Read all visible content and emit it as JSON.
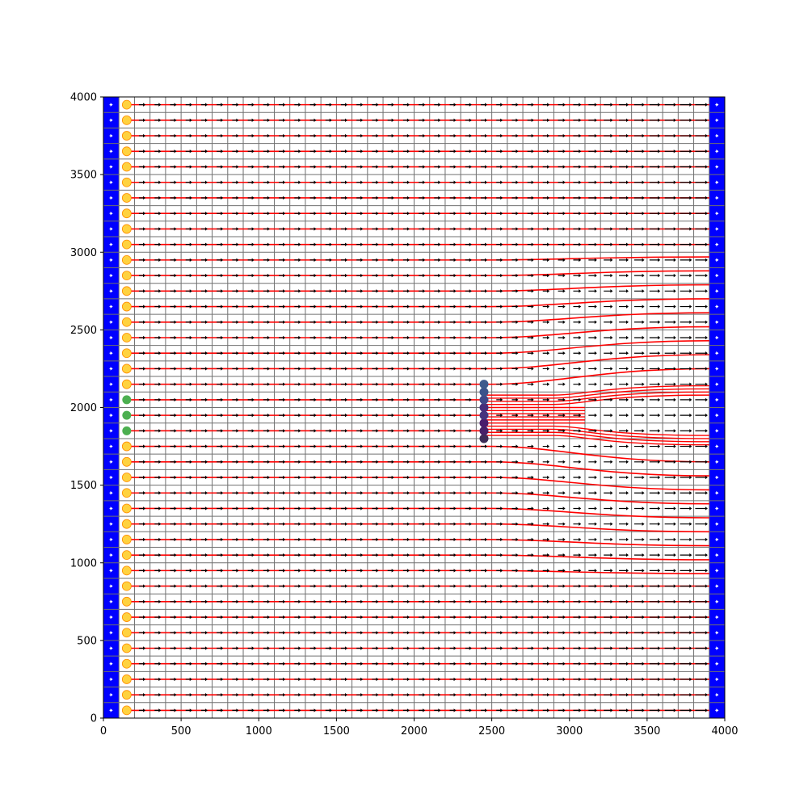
{
  "chart_data": {
    "type": "scatter",
    "title": "",
    "xlabel": "",
    "ylabel": "",
    "xlim": [
      0,
      4000
    ],
    "ylim": [
      0,
      4000
    ],
    "x_ticks": [
      0,
      500,
      1000,
      1500,
      2000,
      2500,
      3000,
      3500,
      4000
    ],
    "y_ticks": [
      0,
      500,
      1000,
      1500,
      2000,
      2500,
      3000,
      3500,
      4000
    ],
    "grid": {
      "cell_size": 100,
      "x_range": [
        0,
        4000
      ],
      "y_range": [
        0,
        4000
      ],
      "line_color": "#707070",
      "boundary_cell_color": "#0000ff",
      "boundary_columns_x": [
        0,
        3900
      ]
    },
    "velocity_field": {
      "arrow_color": "#000000",
      "description_vector_direction": "+x"
    },
    "wells": {
      "injectors_x": 150,
      "injector_y": [
        50,
        150,
        250,
        350,
        450,
        550,
        650,
        750,
        850,
        950,
        1050,
        1150,
        1250,
        1350,
        1450,
        1550,
        1650,
        1750,
        2150,
        2250,
        2350,
        2450,
        2550,
        2650,
        2750,
        2850,
        2950,
        3050,
        3150,
        3250,
        3350,
        3450,
        3550,
        3650,
        3750,
        3850,
        3950
      ],
      "injector_color": "#ffd23f",
      "special_injectors_y": [
        1850,
        1950,
        2050
      ],
      "special_injector_color": "#4caf50",
      "obstacle_x": 2450,
      "obstacle_y": [
        1800,
        1850,
        1900,
        1950,
        2000,
        2050,
        2100,
        2150
      ],
      "obstacle_colors": [
        "#3d2b56",
        "#482068",
        "#4a1c6c",
        "#46337e",
        "#472d7b",
        "#3f4788",
        "#3b528b",
        "#3e5a8d"
      ]
    },
    "streamlines": {
      "color": "#ff0000",
      "start_x": 150,
      "end_x": 3900
    }
  }
}
